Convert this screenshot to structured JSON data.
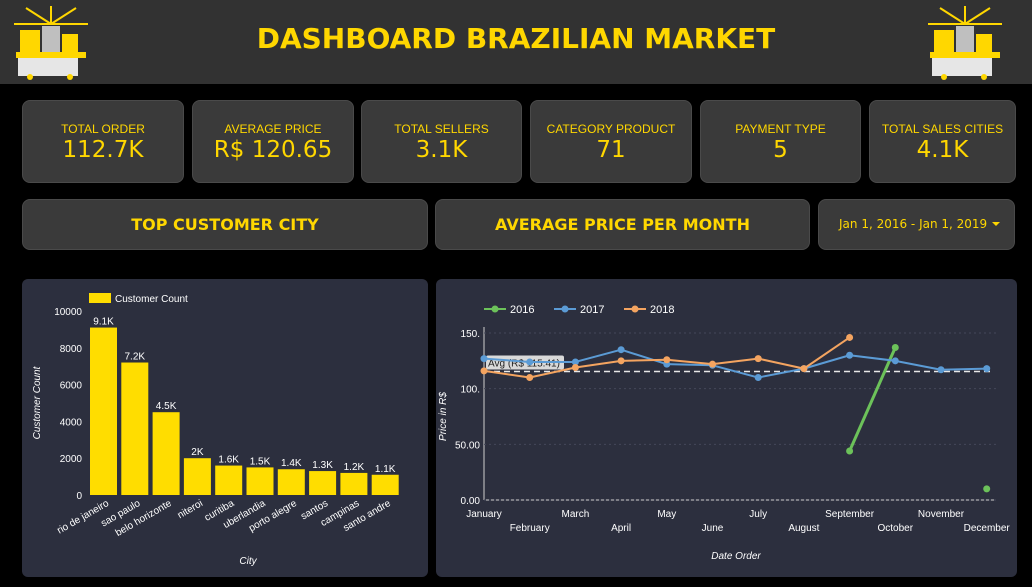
{
  "header": {
    "title": "DASHBOARD BRAZILIAN MARKET",
    "logo_left_icon": "shopping-cart-bags-icon",
    "logo_right_icon": "shopping-cart-bags-icon"
  },
  "kpis": [
    {
      "label": "TOTAL ORDER",
      "value": "112.7K"
    },
    {
      "label": "AVERAGE PRICE",
      "value": "R$ 120.65"
    },
    {
      "label": "TOTAL SELLERS",
      "value": "3.1K"
    },
    {
      "label": "CATEGORY PRODUCT",
      "value": "71"
    },
    {
      "label": "PAYMENT TYPE",
      "value": "5"
    },
    {
      "label": "TOTAL SALES CITIES",
      "value": "4.1K"
    }
  ],
  "banners": {
    "left": "TOP CUSTOMER CITY",
    "right": "AVERAGE PRICE PER MONTH"
  },
  "date_range": {
    "value": "Jan 1, 2016 - Jan 1, 2019",
    "icon": "chevron-down-icon"
  },
  "colors": {
    "accent": "#FFD700",
    "bar": "#FFDD00",
    "series_2016": "#6CC25A",
    "series_2017": "#5B9BD5",
    "series_2018": "#F4A460"
  },
  "chart_data": [
    {
      "type": "bar",
      "legend": "Customer Count",
      "xlabel": "City",
      "ylabel": "Customer Count",
      "ylim": [
        0,
        10000
      ],
      "yticks": [
        "0",
        "2000",
        "4000",
        "6000",
        "8000",
        "10000"
      ],
      "categories": [
        "rio de janeiro",
        "sao paulo",
        "belo horizonte",
        "niteroi",
        "curitiba",
        "uberlandia",
        "porto alegre",
        "santos",
        "campinas",
        "santo andre"
      ],
      "values": [
        9100,
        7200,
        4500,
        2000,
        1600,
        1500,
        1400,
        1300,
        1200,
        1100
      ],
      "data_labels": [
        "9.1K",
        "7.2K",
        "4.5K",
        "2K",
        "1.6K",
        "1.5K",
        "1.4K",
        "1.3K",
        "1.2K",
        "1.1K"
      ],
      "legend_position": "top-left",
      "grid": false
    },
    {
      "type": "line",
      "xlabel": "Date Order",
      "ylabel": "Price in R$",
      "ylim": [
        0,
        150
      ],
      "yticks": [
        "0.00",
        "50.00",
        "100.",
        "150."
      ],
      "categories": [
        "January",
        "February",
        "March",
        "April",
        "May",
        "June",
        "July",
        "August",
        "September",
        "October",
        "November",
        "December"
      ],
      "reference_line": {
        "label": "Avg (R$ 115.41)",
        "value": 115.41
      },
      "legend_position": "top-left",
      "series": [
        {
          "name": "2016",
          "values": [
            null,
            null,
            null,
            null,
            null,
            null,
            null,
            null,
            44,
            137,
            null,
            10
          ]
        },
        {
          "name": "2017",
          "values": [
            127,
            124,
            124,
            135,
            122,
            121,
            110,
            118,
            130,
            125,
            117,
            118
          ]
        },
        {
          "name": "2018",
          "values": [
            116,
            110,
            119,
            125,
            126,
            122,
            127,
            118,
            146,
            null,
            null,
            null
          ]
        }
      ]
    }
  ]
}
